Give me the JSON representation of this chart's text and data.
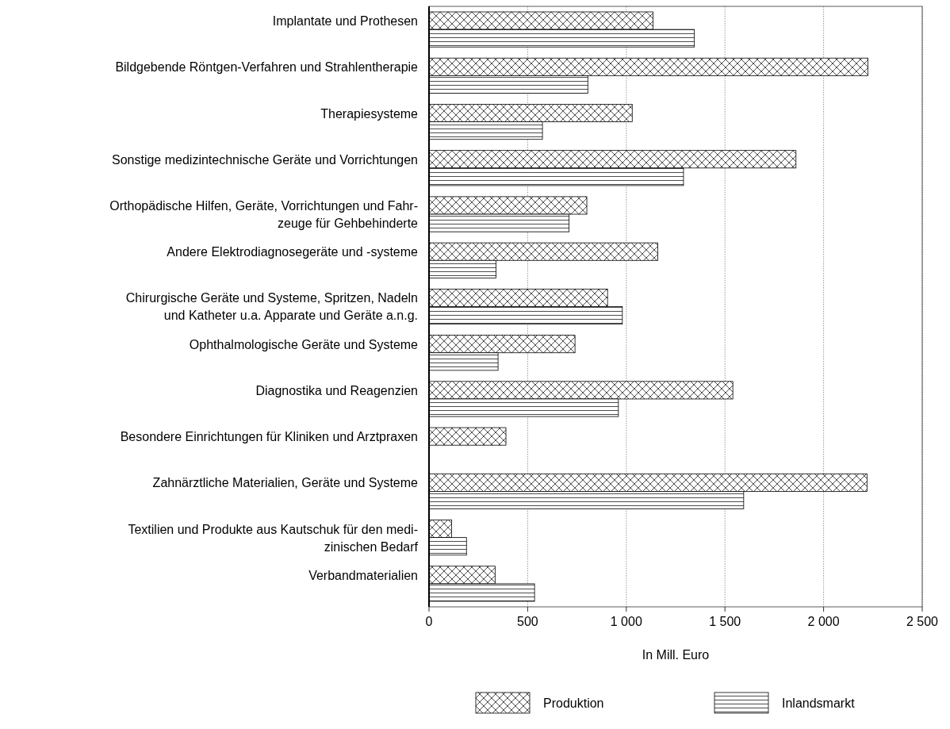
{
  "chart_data": {
    "type": "bar",
    "orientation": "horizontal",
    "xlabel": "In Mill. Euro",
    "categories": [
      "Implantate und Prothesen",
      "Bildgebende Röntgen-Verfahren und Strahlentherapie",
      "Therapiesysteme",
      "Sonstige medizintechnische Geräte und Vorrichtungen",
      "Orthopädische Hilfen, Geräte, Vorrichtungen und Fahr-\nzeuge für Gehbehinderte",
      "Andere Elektrodiagnosegeräte und -systeme",
      "Chirurgische Geräte und Systeme, Spritzen, Nadeln\nund Katheter u.a. Apparate und Geräte a.n.g.",
      "Ophthalmologische Geräte und Systeme",
      "Diagnostika und Reagenzien",
      "Besondere Einrichtungen für Kliniken und Arztpraxen",
      "Zahnärztliche Materialien, Geräte und Systeme",
      "Textilien und Produkte aus Kautschuk für den medi-\nzinischen Bedarf",
      "Verbandmaterialien"
    ],
    "series": [
      {
        "name": "Produktion",
        "color": "#000000",
        "values": [
          1135,
          2225,
          1030,
          1860,
          800,
          1160,
          905,
          740,
          1540,
          390,
          2220,
          115,
          335
        ]
      },
      {
        "name": "Inlandsmarkt",
        "color": "#000000",
        "values": [
          1345,
          805,
          575,
          1290,
          710,
          340,
          980,
          350,
          960,
          null,
          1595,
          190,
          535
        ]
      }
    ],
    "xlim": [
      0,
      2500
    ],
    "xticks": [
      0,
      500,
      {
        "value": 1000,
        "label": "1 000"
      },
      {
        "value": 1500,
        "label": "1 500"
      },
      {
        "value": 2000,
        "label": "2 000"
      },
      {
        "value": 2500,
        "label": "2 500"
      }
    ],
    "grid": "x",
    "legend": "bottom"
  }
}
